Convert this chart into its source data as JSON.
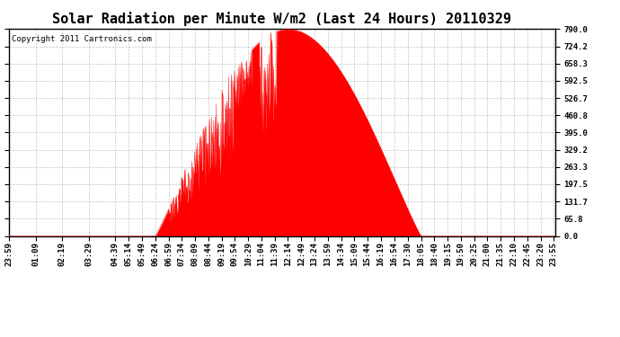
{
  "title": "Solar Radiation per Minute W/m2 (Last 24 Hours) 20110329",
  "copyright": "Copyright 2011 Cartronics.com",
  "yticks": [
    0.0,
    65.8,
    131.7,
    197.5,
    263.3,
    329.2,
    395.0,
    460.8,
    526.7,
    592.5,
    658.3,
    724.2,
    790.0
  ],
  "ymin": 0.0,
  "ymax": 790.0,
  "fill_color": "#FF0000",
  "line_color": "#FF0000",
  "dashed_line_color": "#FF0000",
  "background_color": "#FFFFFF",
  "grid_color": "#AAAAAA",
  "title_fontsize": 11,
  "copyright_fontsize": 6.5,
  "tick_fontsize": 6.5,
  "xtick_labels": [
    "23:59",
    "01:09",
    "02:19",
    "03:29",
    "04:39",
    "05:14",
    "05:49",
    "06:24",
    "06:59",
    "07:34",
    "08:09",
    "08:44",
    "09:19",
    "09:54",
    "10:29",
    "11:04",
    "11:39",
    "12:14",
    "12:49",
    "13:24",
    "13:59",
    "14:34",
    "15:09",
    "15:44",
    "16:19",
    "16:54",
    "17:30",
    "18:05",
    "18:40",
    "19:15",
    "19:50",
    "20:25",
    "21:00",
    "21:35",
    "22:10",
    "22:45",
    "23:20",
    "23:55"
  ]
}
